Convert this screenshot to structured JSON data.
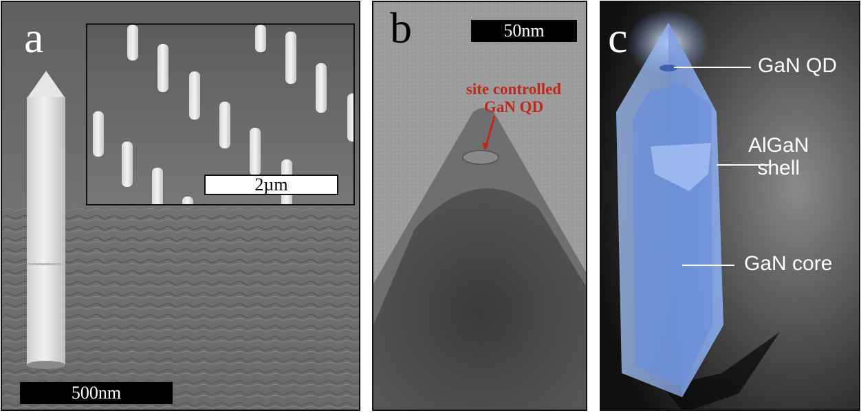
{
  "panel_a": {
    "letter": "a",
    "scalebar": "500nm",
    "inset_scalebar": "2µm"
  },
  "panel_b": {
    "letter": "b",
    "scalebar": "50nm",
    "annotation_line1": "site controlled",
    "annotation_line2": "GaN QD"
  },
  "panel_c": {
    "letter": "c",
    "label_qd": "GaN QD",
    "label_shell_line1": "AlGaN",
    "label_shell_line2": "shell",
    "label_core": "GaN core"
  },
  "colors": {
    "sem_background": "#6e6e6e",
    "tem_background": "#9a9a9a",
    "crystal_blue": "#8fb2f0",
    "annotation_red": "#c0281c"
  }
}
